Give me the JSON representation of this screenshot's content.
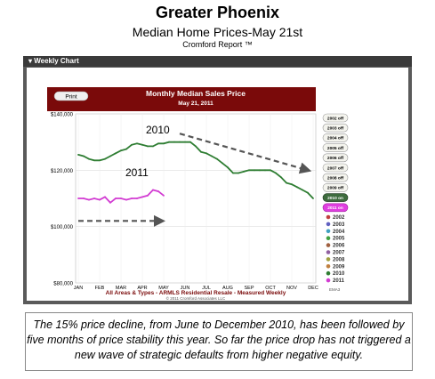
{
  "header": {
    "title": "Greater Phoenix",
    "subtitle": "Median Home Prices-May 21st",
    "source": "Cromford Report ™"
  },
  "panel": {
    "label": "▾ Weekly Chart"
  },
  "chart_data": {
    "type": "line",
    "title": "Monthly Median Sales Price",
    "subtitle": "May 21, 2011",
    "print_label": "Print",
    "footer": "All Areas & Types - ARMLS Residential Resale - Measured Weekly",
    "copyright": "© 2011 Cromford Associates LLC",
    "tag": "EMA3",
    "categories": [
      "JAN",
      "FEB",
      "MAR",
      "APR",
      "MAY",
      "JUN",
      "JUL",
      "AUG",
      "SEP",
      "OCT",
      "NOV",
      "DEC"
    ],
    "y_ticks": [
      "$140,000",
      "$120,000",
      "$100,000",
      "$80,000"
    ],
    "y_tick_values": [
      140000,
      120000,
      100000,
      80000
    ],
    "ylim": [
      80000,
      140000
    ],
    "annotations": [
      "2010",
      "2011"
    ],
    "toggles": [
      "2002 off",
      "2003 off",
      "2004 off",
      "2005 off",
      "2006 off",
      "2007 off",
      "2008 off",
      "2009 off",
      "2010 on",
      "2011 on"
    ],
    "legend": [
      {
        "label": "2002",
        "color": "#c04040"
      },
      {
        "label": "2003",
        "color": "#6060c0"
      },
      {
        "label": "2004",
        "color": "#40a0c0"
      },
      {
        "label": "2005",
        "color": "#40a040"
      },
      {
        "label": "2006",
        "color": "#a06040"
      },
      {
        "label": "2007",
        "color": "#9060a0"
      },
      {
        "label": "2008",
        "color": "#a0a040"
      },
      {
        "label": "2009",
        "color": "#c08040"
      },
      {
        "label": "2010",
        "color": "#2e7d32"
      },
      {
        "label": "2011",
        "color": "#d23cd2"
      }
    ],
    "series": [
      {
        "name": "2010",
        "color": "#2e7d32",
        "x": [
          1,
          1.25,
          1.5,
          1.75,
          2,
          2.25,
          2.5,
          2.75,
          3,
          3.25,
          3.5,
          3.75,
          4,
          4.25,
          4.5,
          4.75,
          5,
          5.25,
          5.5,
          5.75,
          6,
          6.25,
          6.5,
          6.75,
          7,
          7.25,
          7.5,
          7.75,
          8,
          8.25,
          8.5,
          8.75,
          9,
          9.25,
          9.5,
          9.75,
          10,
          10.25,
          10.5,
          10.75,
          11,
          11.25,
          11.5,
          11.75,
          12
        ],
        "values": [
          125500,
          125000,
          124000,
          123500,
          123500,
          124000,
          125000,
          126000,
          127000,
          127500,
          129000,
          129500,
          129000,
          128500,
          128500,
          129500,
          129500,
          130000,
          130000,
          130000,
          130000,
          130000,
          128500,
          126500,
          126000,
          125000,
          124000,
          122500,
          121000,
          119000,
          119000,
          119500,
          120000,
          120000,
          120000,
          120000,
          120000,
          119000,
          117500,
          115500,
          115000,
          114000,
          113000,
          112000,
          110000
        ]
      },
      {
        "name": "2011",
        "color": "#d23cd2",
        "x": [
          1,
          1.25,
          1.5,
          1.75,
          2,
          2.25,
          2.5,
          2.75,
          3,
          3.25,
          3.5,
          3.75,
          4,
          4.25,
          4.5,
          4.75,
          5
        ],
        "values": [
          110000,
          110000,
          109500,
          110000,
          109500,
          110500,
          108500,
          110000,
          110000,
          109500,
          110000,
          110000,
          110500,
          111000,
          113000,
          112500,
          111000
        ]
      }
    ],
    "arrows": [
      {
        "from": [
          5.75,
          133000
        ],
        "to": [
          11.75,
          120000
        ]
      },
      {
        "from": [
          1,
          102000
        ],
        "to": [
          4.9,
          102000
        ]
      }
    ]
  },
  "caption": "The 15% price decline, from June to December 2010,  has been followed by five months of  price stability this year. So far the price drop has not triggered a new wave of strategic defaults from higher negative equity."
}
